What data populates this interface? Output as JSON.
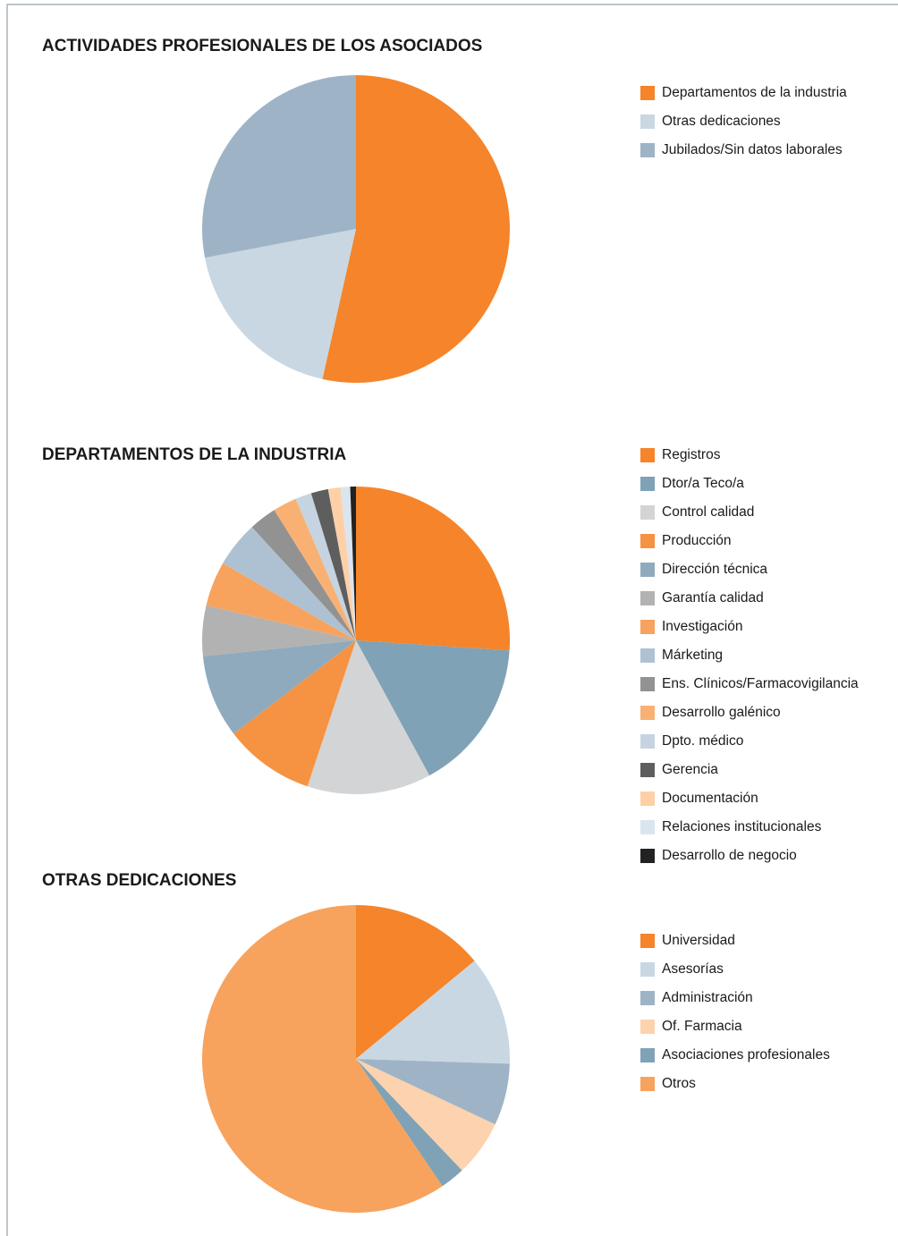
{
  "chart_data": [
    {
      "type": "pie",
      "title": "ACTIVIDADES PROFESIONALES DE LOS ASOCIADOS",
      "categories": [
        "Departamentos de la industria",
        "Otras dedicaciones",
        "Jubilados/Sin datos laborales"
      ],
      "values": [
        53.5,
        18.5,
        28
      ],
      "colors": [
        "#f5842a",
        "#c9d7e2",
        "#9eb4c6"
      ]
    },
    {
      "type": "pie",
      "title": "DEPARTAMENTOS DE LA INDUSTRIA",
      "categories": [
        "Registros",
        "Dtor/a Teco/a",
        "Control calidad",
        "Producción",
        "Dirección técnica",
        "Garantía calidad",
        "Investigación",
        "Márketing",
        "Ens. Clínicos/Farmacovigilancia",
        "Desarrollo galénico",
        "Dpto. médico",
        "Gerencia",
        "Documentación",
        "Relaciones institucionales",
        "Desarrollo de negocio"
      ],
      "values": [
        26,
        16,
        13,
        9.5,
        8.7,
        5.3,
        4.7,
        4.8,
        2.9,
        2.5,
        1.7,
        1.8,
        1.3,
        1,
        0.6
      ],
      "colors": [
        "#f5842a",
        "#7fa2b6",
        "#d3d4d5",
        "#f59342",
        "#8faabd",
        "#b2b2b2",
        "#f7a35e",
        "#adc1d2",
        "#929292",
        "#f9b173",
        "#c5d4e0",
        "#5e5e5e",
        "#fdd0a8",
        "#dbe5ee",
        "#222222"
      ]
    },
    {
      "type": "pie",
      "title": "OTRAS DEDICACIONES",
      "categories": [
        "Universidad",
        "Asesorías",
        "Administración",
        "Of. Farmacia",
        "Asociaciones profesionales",
        "Otros"
      ],
      "values": [
        14,
        11.5,
        6.5,
        5.9,
        2.6,
        59.5
      ],
      "colors": [
        "#f5842a",
        "#c9d7e2",
        "#9eb4c6",
        "#fdd2ae",
        "#7fa2b6",
        "#f7a35e"
      ]
    }
  ]
}
